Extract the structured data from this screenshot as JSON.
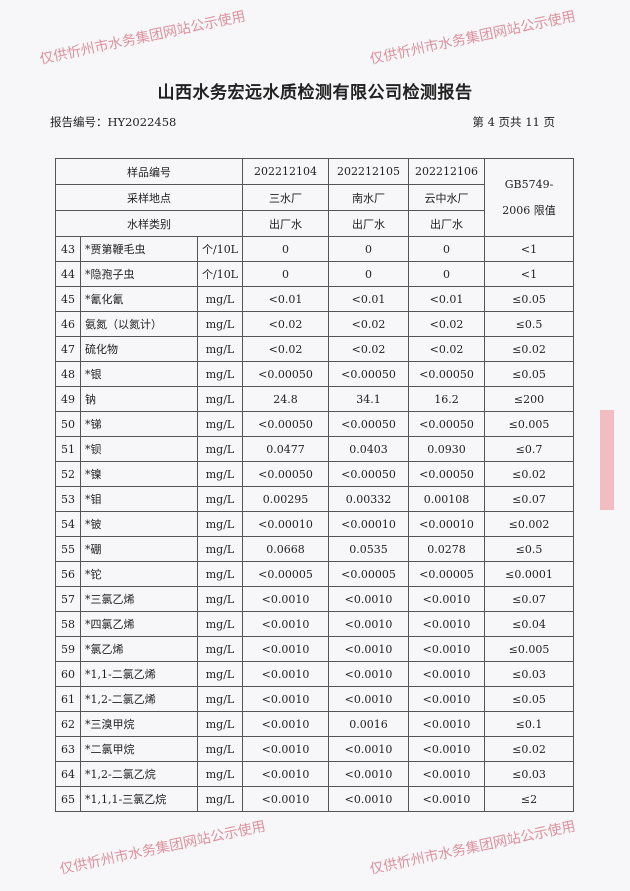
{
  "title": "山西水务宏远水质检测有限公司检测报告",
  "report_no": "报告编号：HY2022458",
  "page_no": "第 4 页共 11 页",
  "watermark": "仅供忻州市水务集团网站公示使用",
  "header": {
    "sample_no_label": "样品编号",
    "sample_nos": [
      "202212104",
      "202212105",
      "202212106"
    ],
    "site_label": "采样地点",
    "sites": [
      "三水厂",
      "南水厂",
      "云中水厂"
    ],
    "type_label": "水样类别",
    "types": [
      "出厂水",
      "出厂水",
      "出厂水"
    ],
    "limit_label": "GB5749-2006 限值"
  },
  "rows": [
    [
      "43",
      "*贾第鞭毛虫",
      "个/10L",
      "0",
      "0",
      "0",
      "<1"
    ],
    [
      "44",
      "*隐孢子虫",
      "个/10L",
      "0",
      "0",
      "0",
      "<1"
    ],
    [
      "45",
      "*氰化氰",
      "mg/L",
      "<0.01",
      "<0.01",
      "<0.01",
      "≤0.05"
    ],
    [
      "46",
      "氨氮（以氮计）",
      "mg/L",
      "<0.02",
      "<0.02",
      "<0.02",
      "≤0.5"
    ],
    [
      "47",
      "硫化物",
      "mg/L",
      "<0.02",
      "<0.02",
      "<0.02",
      "≤0.02"
    ],
    [
      "48",
      "*银",
      "mg/L",
      "<0.00050",
      "<0.00050",
      "<0.00050",
      "≤0.05"
    ],
    [
      "49",
      "钠",
      "mg/L",
      "24.8",
      "34.1",
      "16.2",
      "≤200"
    ],
    [
      "50",
      "*锑",
      "mg/L",
      "<0.00050",
      "<0.00050",
      "<0.00050",
      "≤0.005"
    ],
    [
      "51",
      "*钡",
      "mg/L",
      "0.0477",
      "0.0403",
      "0.0930",
      "≤0.7"
    ],
    [
      "52",
      "*镍",
      "mg/L",
      "<0.00050",
      "<0.00050",
      "<0.00050",
      "≤0.02"
    ],
    [
      "53",
      "*钼",
      "mg/L",
      "0.00295",
      "0.00332",
      "0.00108",
      "≤0.07"
    ],
    [
      "54",
      "*铍",
      "mg/L",
      "<0.00010",
      "<0.00010",
      "<0.00010",
      "≤0.002"
    ],
    [
      "55",
      "*硼",
      "mg/L",
      "0.0668",
      "0.0535",
      "0.0278",
      "≤0.5"
    ],
    [
      "56",
      "*铊",
      "mg/L",
      "<0.00005",
      "<0.00005",
      "<0.00005",
      "≤0.0001"
    ],
    [
      "57",
      "*三氯乙烯",
      "mg/L",
      "<0.0010",
      "<0.0010",
      "<0.0010",
      "≤0.07"
    ],
    [
      "58",
      "*四氯乙烯",
      "mg/L",
      "<0.0010",
      "<0.0010",
      "<0.0010",
      "≤0.04"
    ],
    [
      "59",
      "*氯乙烯",
      "mg/L",
      "<0.0010",
      "<0.0010",
      "<0.0010",
      "≤0.005"
    ],
    [
      "60",
      "*1,1-二氯乙烯",
      "mg/L",
      "<0.0010",
      "<0.0010",
      "<0.0010",
      "≤0.03"
    ],
    [
      "61",
      "*1,2-二氯乙烯",
      "mg/L",
      "<0.0010",
      "<0.0010",
      "<0.0010",
      "≤0.05"
    ],
    [
      "62",
      "*三溴甲烷",
      "mg/L",
      "<0.0010",
      "0.0016",
      "<0.0010",
      "≤0.1"
    ],
    [
      "63",
      "*二氯甲烷",
      "mg/L",
      "<0.0010",
      "<0.0010",
      "<0.0010",
      "≤0.02"
    ],
    [
      "64",
      "*1,2-二氯乙烷",
      "mg/L",
      "<0.0010",
      "<0.0010",
      "<0.0010",
      "≤0.03"
    ],
    [
      "65",
      "*1,1,1-三氯乙烷",
      "mg/L",
      "<0.0010",
      "<0.0010",
      "<0.0010",
      "≤2"
    ]
  ]
}
